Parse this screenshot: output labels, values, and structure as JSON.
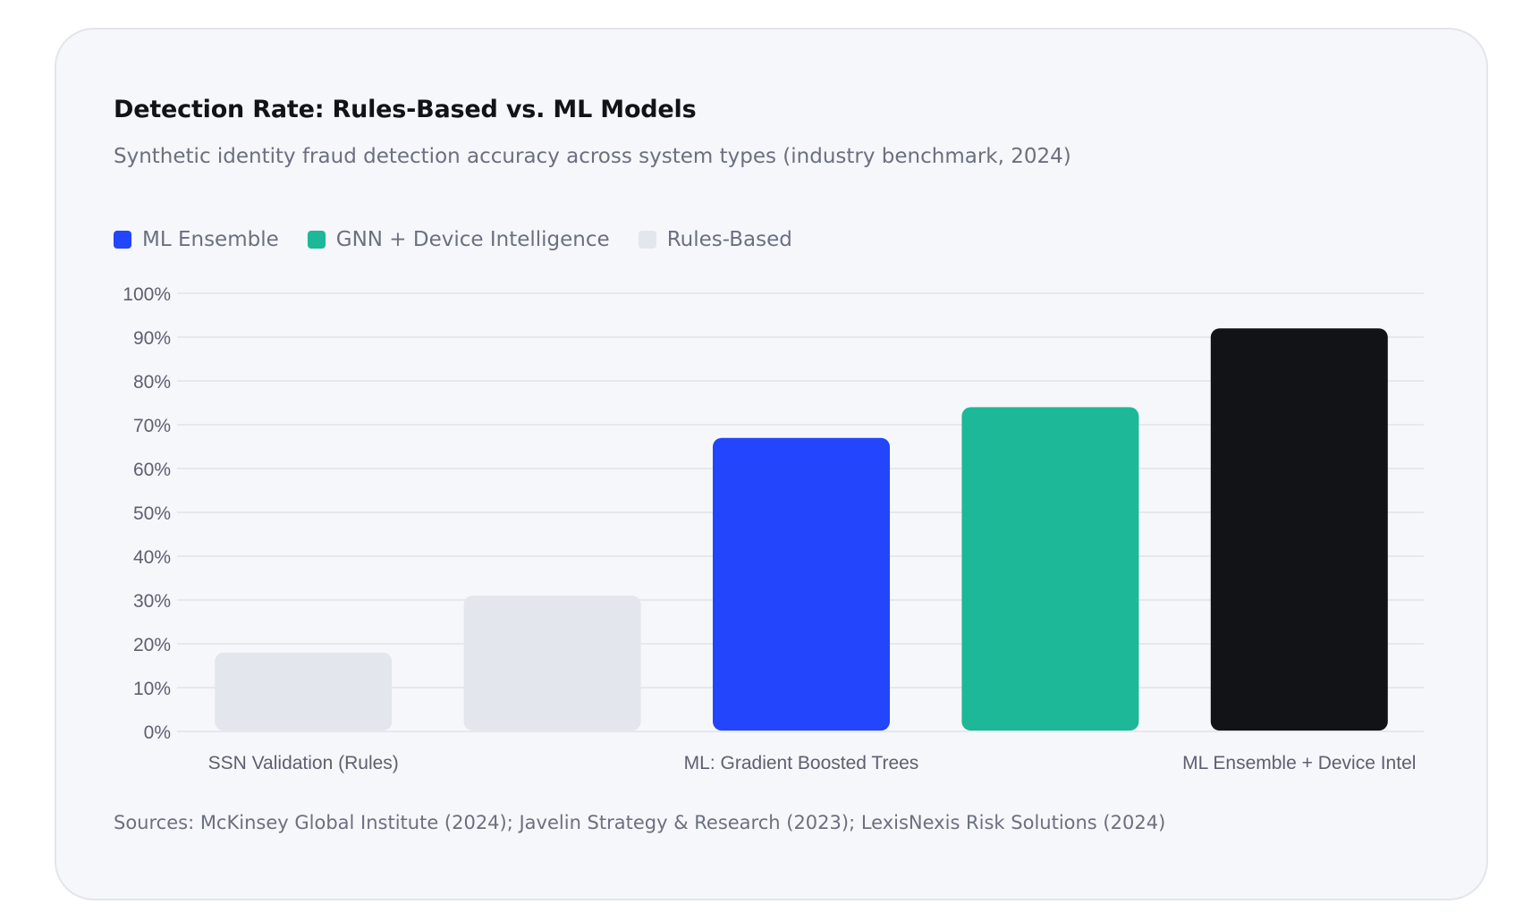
{
  "colors": {
    "ml_ensemble": "#2345fb",
    "gnn_device": "#1db898",
    "rules_based": "#e4e6ee",
    "top_bar": "#121317",
    "grid": "#e2e4ea",
    "tick_text": "#5c6070"
  },
  "legend": [
    {
      "label": "ML Ensemble",
      "color": "#2345fb"
    },
    {
      "label": "GNN + Device Intelligence",
      "color": "#1db898"
    },
    {
      "label": "Rules-Based",
      "color": "#e4e6ee"
    }
  ],
  "sources": "Sources: McKinsey Global Institute (2024); Javelin Strategy & Research (2023); LexisNexis Risk Solutions (2024)",
  "chart_data": {
    "type": "bar",
    "title": "Detection Rate: Rules-Based vs. ML Models",
    "subtitle": "Synthetic identity fraud detection accuracy across system types (industry benchmark, 2024)",
    "xlabel": "",
    "ylabel": "",
    "ylim": [
      0,
      100
    ],
    "yticks": [
      "0%",
      "10%",
      "20%",
      "30%",
      "40%",
      "50%",
      "60%",
      "70%",
      "80%",
      "90%",
      "100%"
    ],
    "categories": [
      "SSN Validation (Rules)",
      "",
      "ML: Gradient Boosted Trees",
      "",
      "ML Ensemble + Device Intel"
    ],
    "values": [
      18,
      31,
      67,
      74,
      92
    ],
    "bar_colors": [
      "#e4e6ee",
      "#e4e6ee",
      "#2345fb",
      "#1db898",
      "#121317"
    ],
    "grid": true,
    "legend_position": "top-left"
  }
}
